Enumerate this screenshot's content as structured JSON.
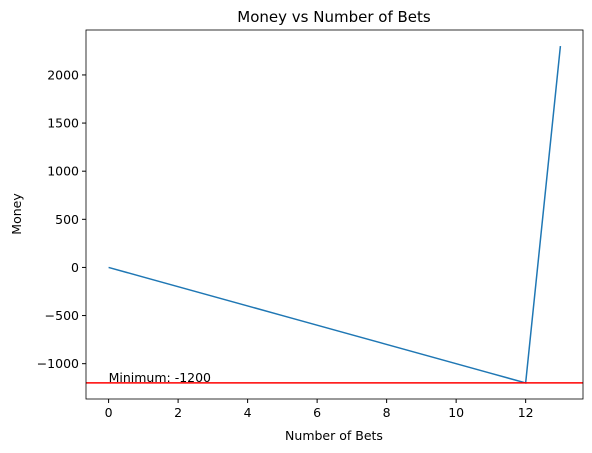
{
  "chart_data": {
    "type": "line",
    "title": "Money vs Number of Bets",
    "xlabel": "Number of Bets",
    "ylabel": "Money",
    "x": [
      0,
      1,
      2,
      3,
      4,
      5,
      6,
      7,
      8,
      9,
      10,
      11,
      12,
      13
    ],
    "values": [
      0,
      -100,
      -200,
      -300,
      -400,
      -500,
      -600,
      -700,
      -800,
      -900,
      -1000,
      -1100,
      -1200,
      2300
    ],
    "color": "#1f77b4",
    "xlim": [
      -0.65,
      13.65
    ],
    "ylim": [
      -1367,
      2467
    ],
    "xticks": [
      0,
      2,
      4,
      6,
      8,
      10,
      12
    ],
    "yticks": [
      {
        "value": -1000,
        "label": "−1000"
      },
      {
        "value": -500,
        "label": "−500"
      },
      0,
      500,
      1000,
      1500,
      2000
    ],
    "hline": {
      "value": -1200,
      "color": "#ff0000"
    },
    "annotation": "Minimum: -1200"
  }
}
